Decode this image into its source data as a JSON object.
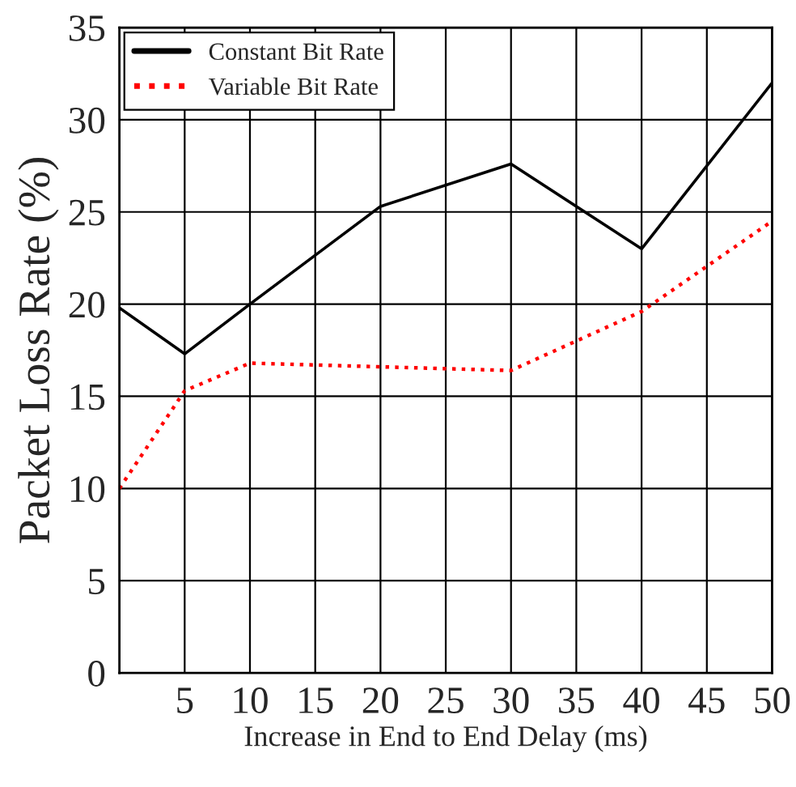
{
  "chart_data": {
    "type": "line",
    "xlabel": "Increase in End to End Delay (ms)",
    "ylabel": "Packet Loss Rate (%)",
    "x": [
      0,
      5,
      10,
      20,
      30,
      40,
      50
    ],
    "series": [
      {
        "name": "Constant Bit Rate",
        "color": "#000000",
        "line_style": "solid",
        "values": [
          19.8,
          17.3,
          20.0,
          25.3,
          27.6,
          23.0,
          32.0
        ]
      },
      {
        "name": "Variable Bit Rate",
        "color": "#ff0000",
        "line_style": "dotted",
        "values": [
          10.0,
          15.3,
          16.8,
          16.6,
          16.4,
          19.6,
          24.5
        ]
      }
    ],
    "xlim": [
      0,
      50
    ],
    "xticks": [
      5,
      10,
      15,
      20,
      25,
      30,
      35,
      40,
      45,
      50
    ],
    "ylim": [
      0,
      35
    ],
    "yticks": [
      0,
      5,
      10,
      15,
      20,
      25,
      30,
      35
    ],
    "grid": true,
    "legend": "top left",
    "marker": "none"
  }
}
